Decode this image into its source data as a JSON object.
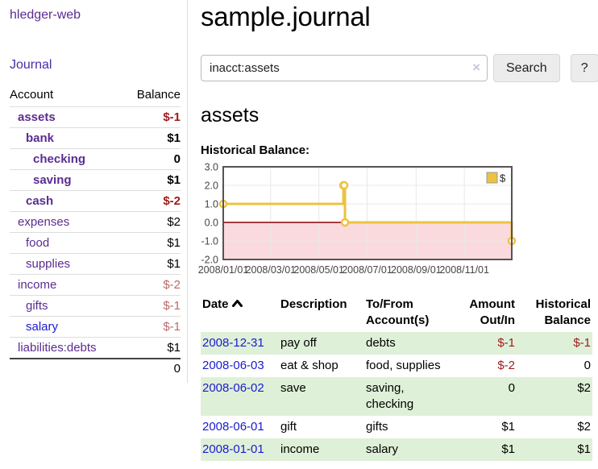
{
  "colors": {
    "link_purple": "#5b2c91",
    "link_blue": "#1b1bd0",
    "negative_strong": "#9e1a1a",
    "negative_soft": "#bb6a6a",
    "row_stripe_green": "#dff0d8",
    "series_yellow": "#edc240",
    "negative_region_pink": "#fadadd",
    "zero_line_red": "#8b0000",
    "plot_border_gray": "#545454",
    "grid_gray": "#e8e8e8"
  },
  "sidebar": {
    "brand": "hledger-web",
    "journal_label": "Journal",
    "accounts_table": {
      "account_header": "Account",
      "balance_header": "Balance",
      "rows": [
        {
          "name": "assets",
          "indent": 1,
          "hue": "purple",
          "weight": "bold",
          "balance": "$-1",
          "tone": "neg-strong"
        },
        {
          "name": "bank",
          "indent": 2,
          "hue": "purple",
          "weight": "bold",
          "balance": "$1",
          "tone": "strong"
        },
        {
          "name": "checking",
          "indent": 3,
          "hue": "purple",
          "weight": "bold",
          "balance": "0",
          "tone": "strong"
        },
        {
          "name": "saving",
          "indent": 3,
          "hue": "purple",
          "weight": "bold",
          "balance": "$1",
          "tone": "strong"
        },
        {
          "name": "cash",
          "indent": 2,
          "hue": "purple",
          "weight": "bold",
          "balance": "$-2",
          "tone": "neg-strong"
        },
        {
          "name": "expenses",
          "indent": 1,
          "hue": "purple",
          "weight": "normal",
          "balance": "$2",
          "tone": "plain"
        },
        {
          "name": "food",
          "indent": 2,
          "hue": "purple",
          "weight": "normal",
          "balance": "$1",
          "tone": "plain"
        },
        {
          "name": "supplies",
          "indent": 2,
          "hue": "purple",
          "weight": "normal",
          "balance": "$1",
          "tone": "plain"
        },
        {
          "name": "income",
          "indent": 1,
          "hue": "purple",
          "weight": "normal",
          "balance": "$-2",
          "tone": "neg-soft"
        },
        {
          "name": "gifts",
          "indent": 2,
          "hue": "purple",
          "weight": "normal",
          "balance": "$-1",
          "tone": "neg-soft"
        },
        {
          "name": "salary",
          "indent": 2,
          "hue": "blue",
          "weight": "normal",
          "balance": "$-1",
          "tone": "neg-soft"
        },
        {
          "name": "liabilities:debts",
          "indent": 1,
          "hue": "purple",
          "weight": "normal",
          "balance": "$1",
          "tone": "plain"
        }
      ],
      "total": "0"
    }
  },
  "main": {
    "title": "sample.journal",
    "search": {
      "value": "inacct:assets",
      "clear_icon": "×",
      "button_label": "Search",
      "help_label": "?"
    },
    "account_heading": "assets",
    "chart_heading": "Historical Balance:",
    "register_table": {
      "headers": {
        "date": "Date",
        "description": "Description",
        "tofrom": "To/From Account(s)",
        "amount": "Amount Out/In",
        "historical": "Historical Balance"
      },
      "rows": [
        {
          "date": "2008-12-31",
          "description": "pay off",
          "accounts": "debts",
          "amount": "$-1",
          "amount_tone": "neg",
          "balance": "$-1",
          "balance_tone": "neg",
          "shaded": true
        },
        {
          "date": "2008-06-03",
          "description": "eat & shop",
          "accounts": "food, supplies",
          "amount": "$-2",
          "amount_tone": "neg",
          "balance": "0",
          "balance_tone": "plain",
          "shaded": false
        },
        {
          "date": "2008-06-02",
          "description": "save",
          "accounts": "saving, checking",
          "amount": "0",
          "amount_tone": "plain",
          "balance": "$2",
          "balance_tone": "plain",
          "shaded": true
        },
        {
          "date": "2008-06-01",
          "description": "gift",
          "accounts": "gifts",
          "amount": "$1",
          "amount_tone": "plain",
          "balance": "$2",
          "balance_tone": "plain",
          "shaded": false
        },
        {
          "date": "2008-01-01",
          "description": "income",
          "accounts": "salary",
          "amount": "$1",
          "amount_tone": "plain",
          "balance": "$1",
          "balance_tone": "plain",
          "shaded": true
        }
      ]
    }
  },
  "chart_data": {
    "type": "line",
    "step": true,
    "title": "Historical Balance:",
    "xlabel": "",
    "ylabel": "",
    "xlim": [
      "2008-01-01",
      "2008-12-31"
    ],
    "ylim": [
      -2,
      3
    ],
    "yticks": [
      {
        "v": 3,
        "label": "3.0"
      },
      {
        "v": 2,
        "label": "2.0"
      },
      {
        "v": 1,
        "label": "1.0"
      },
      {
        "v": 0,
        "label": "0.0"
      },
      {
        "v": -1,
        "label": "-1.0"
      },
      {
        "v": -2,
        "label": "-2.0"
      }
    ],
    "xticks": [
      "2008/01/01",
      "2008/03/01",
      "2008/05/01",
      "2008/07/01",
      "2008/09/01",
      "2008/11/01"
    ],
    "series": [
      {
        "name": "$",
        "color": "#edc240",
        "points": [
          [
            "2008-01-01",
            1
          ],
          [
            "2008-06-01",
            2
          ],
          [
            "2008-06-02",
            2
          ],
          [
            "2008-06-03",
            0
          ],
          [
            "2008-12-31",
            -1
          ]
        ]
      }
    ],
    "legend_position": "top-right",
    "grid": true,
    "negative_region_below": 0
  }
}
